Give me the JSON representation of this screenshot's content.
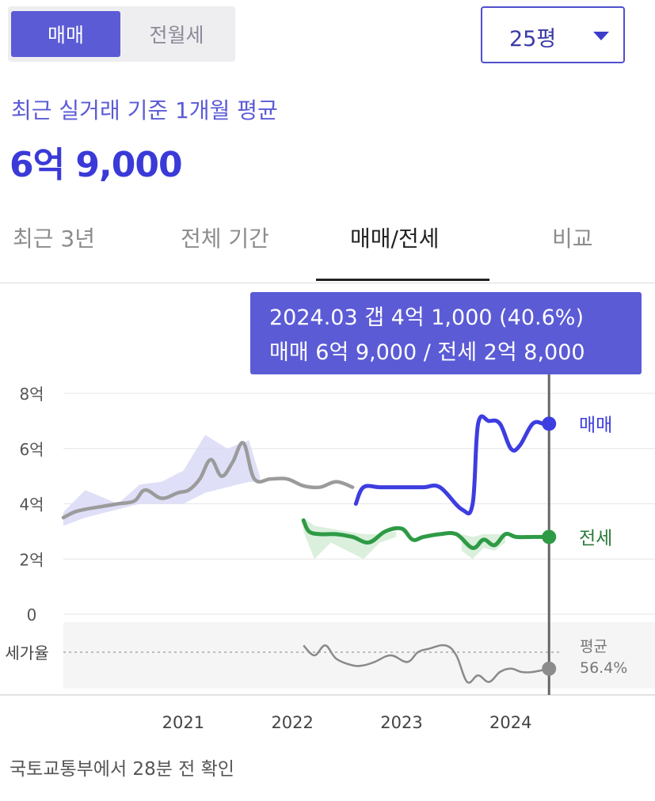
{
  "trade_toggle": {
    "sale_label": "매매",
    "jeonse_label": "전월세"
  },
  "size_select": {
    "value": "25평"
  },
  "summary": {
    "label": "최근 실거래 기준 1개월 평균",
    "price": "6억 9,000"
  },
  "tabs": [
    {
      "label": "최근 3년"
    },
    {
      "label": "전체 기간"
    },
    {
      "label": "매매/전세",
      "active": true
    },
    {
      "label": "비교"
    }
  ],
  "tooltip": {
    "line1": "2024.03  갭 4억 1,000 (40.6%)",
    "line2": "매매 6억 9,000 / 전세 2억 8,000"
  },
  "colors": {
    "sale": "#3d3de0",
    "jeonse": "#2e9a45",
    "past": "#9b9b9b",
    "ratio": "#8a8a8a",
    "sale_band": "#d9d9f7",
    "jeonse_band": "#d3ecd6",
    "cursor": "#666666"
  },
  "chart_data": {
    "type": "line",
    "title": "",
    "ylim": [
      0,
      8
    ],
    "y_ticks": [
      "8억",
      "6억",
      "4억",
      "2억",
      "0"
    ],
    "y_tick_values": [
      8,
      6,
      4,
      2,
      0
    ],
    "x_ticks": [
      "2021",
      "2022",
      "2023",
      "2024"
    ],
    "x_tick_values": [
      2021.0,
      2022.0,
      2023.0,
      2024.0
    ],
    "xlim": [
      2019.8,
      2024.35
    ],
    "legend_labels": {
      "sale": "매매",
      "jeonse": "전세"
    },
    "ratio_label": "세가율",
    "ratio_avg_label": "평균",
    "ratio_avg_value": "56.4%",
    "series": [
      {
        "name": "매매",
        "key": "past",
        "x": [
          2019.8,
          2019.9,
          2020.0,
          2020.15,
          2020.3,
          2020.45,
          2020.55,
          2020.7,
          2020.85,
          2020.95,
          2021.05,
          2021.15,
          2021.25,
          2021.35,
          2021.45,
          2021.55,
          2021.7,
          2021.85,
          2022.0,
          2022.15,
          2022.3,
          2022.45
        ],
        "y": [
          3.5,
          3.7,
          3.8,
          3.9,
          4.0,
          4.1,
          4.5,
          4.2,
          4.4,
          4.5,
          4.9,
          5.6,
          5.0,
          5.5,
          6.2,
          4.9,
          4.9,
          4.9,
          4.65,
          4.6,
          4.8,
          4.6
        ]
      },
      {
        "name": "매매",
        "key": "sale",
        "x": [
          2022.48,
          2022.55,
          2022.7,
          2022.9,
          2023.1,
          2023.25,
          2023.45,
          2023.55,
          2023.6,
          2023.7,
          2023.8,
          2023.9,
          2023.98,
          2024.1,
          2024.2,
          2024.25
        ],
        "y": [
          4.0,
          4.6,
          4.6,
          4.6,
          4.6,
          4.6,
          3.8,
          4.0,
          6.9,
          7.0,
          6.9,
          6.0,
          6.1,
          6.9,
          6.9,
          6.9
        ]
      },
      {
        "name": "전세",
        "key": "jeonse",
        "x": [
          2022.0,
          2022.05,
          2022.15,
          2022.3,
          2022.45,
          2022.6,
          2022.75,
          2022.9,
          2023.0,
          2023.1,
          2023.25,
          2023.4,
          2023.55,
          2023.65,
          2023.75,
          2023.85,
          2023.95,
          2024.1,
          2024.25
        ],
        "y": [
          3.4,
          3.0,
          2.9,
          2.9,
          2.8,
          2.6,
          3.0,
          3.1,
          2.7,
          2.8,
          2.9,
          2.9,
          2.4,
          2.7,
          2.5,
          2.9,
          2.8,
          2.8,
          2.8
        ]
      }
    ],
    "bands": [
      {
        "key": "sale_band",
        "x": [
          2019.8,
          2020.0,
          2020.3,
          2020.5,
          2020.7,
          2020.9,
          2021.1,
          2021.3,
          2021.5,
          2021.6
        ],
        "upper": [
          3.7,
          4.5,
          4.0,
          4.7,
          4.8,
          5.2,
          6.5,
          6.0,
          6.3,
          5.0
        ],
        "lower": [
          3.2,
          3.5,
          3.8,
          4.0,
          4.0,
          4.0,
          4.4,
          4.6,
          4.8,
          4.8
        ]
      },
      {
        "key": "jeonse_band",
        "x": [
          2022.0,
          2022.1,
          2022.25,
          2022.4,
          2022.55,
          2022.7,
          2022.85
        ],
        "upper": [
          3.5,
          3.2,
          3.1,
          3.0,
          2.9,
          2.9,
          3.0
        ],
        "lower": [
          3.0,
          2.0,
          2.6,
          2.3,
          2.0,
          2.6,
          2.8
        ]
      },
      {
        "key": "jeonse_band",
        "x": [
          2023.45,
          2023.55,
          2023.65,
          2023.75,
          2023.85
        ],
        "upper": [
          2.9,
          2.8,
          2.9,
          2.9,
          2.9
        ],
        "lower": [
          2.3,
          2.0,
          2.4,
          2.3,
          2.6
        ]
      }
    ],
    "ratio_series": {
      "x": [
        2022.0,
        2022.1,
        2022.2,
        2022.3,
        2022.45,
        2022.55,
        2022.65,
        2022.8,
        2022.95,
        2023.05,
        2023.15,
        2023.3,
        2023.4,
        2023.5,
        2023.6,
        2023.7,
        2023.8,
        2023.9,
        2024.0,
        2024.1,
        2024.25
      ],
      "y": [
        0.65,
        0.5,
        0.65,
        0.45,
        0.35,
        0.35,
        0.4,
        0.5,
        0.4,
        0.55,
        0.6,
        0.65,
        0.5,
        0.1,
        0.2,
        0.1,
        0.25,
        0.3,
        0.25,
        0.25,
        0.3
      ]
    },
    "cursor_x": 2024.25,
    "cursor_values": {
      "sale": 6.9,
      "jeonse": 2.8,
      "ratio": 0.3
    }
  },
  "footer": {
    "source": "국토교통부에서 28분 전 확인"
  }
}
